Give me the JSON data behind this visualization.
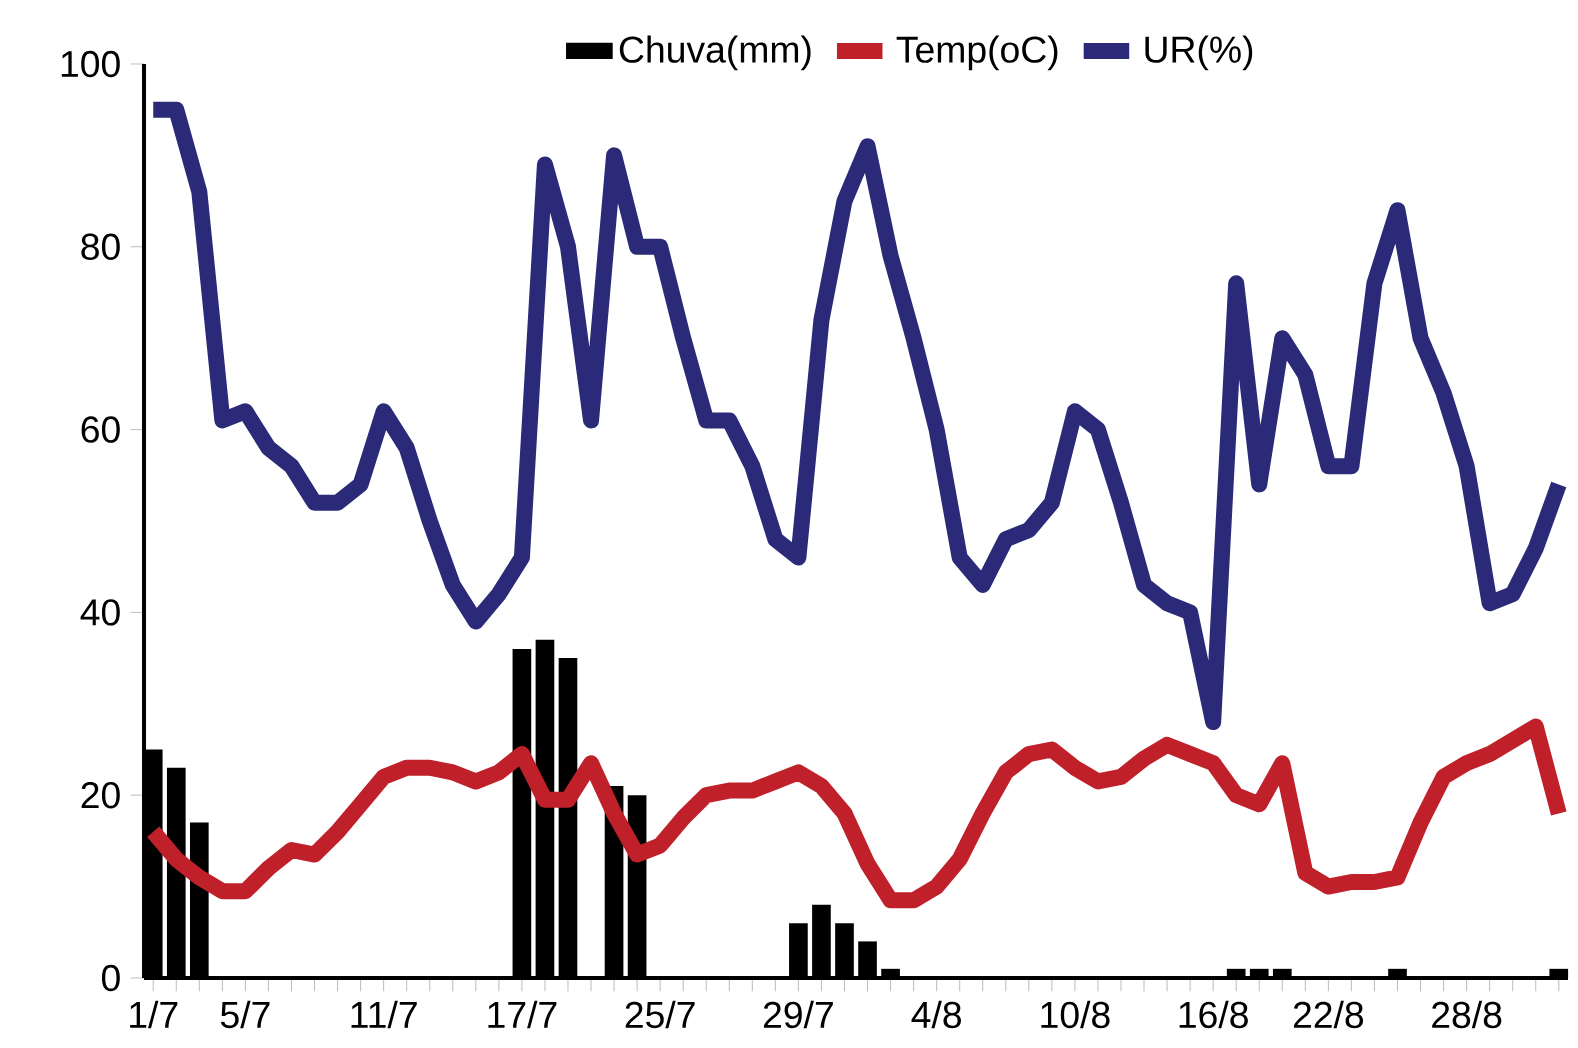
{
  "chart_data": {
    "type": "bar",
    "categories": [
      "1/7",
      null,
      null,
      null,
      "5/7",
      null,
      null,
      null,
      null,
      null,
      "11/7",
      null,
      null,
      null,
      null,
      null,
      "17/7",
      null,
      null,
      null,
      null,
      null,
      "25/7",
      null,
      null,
      null,
      null,
      null,
      "29/7",
      null,
      null,
      null,
      null,
      null,
      "4/8",
      null,
      null,
      null,
      null,
      null,
      "10/8",
      null,
      null,
      null,
      null,
      null,
      "16/8",
      null,
      null,
      null,
      null,
      "22/8",
      null,
      null,
      null,
      null,
      null,
      "28/8",
      null,
      null,
      null,
      null
    ],
    "series": [
      {
        "name": "Chuva(mm)",
        "color": "#000000",
        "values": [
          25,
          23,
          17,
          0,
          0,
          0,
          0,
          0,
          0,
          0,
          0,
          0,
          0,
          0,
          0,
          0,
          36,
          37,
          35,
          0,
          21,
          20,
          0,
          0,
          0,
          0,
          0,
          0,
          6,
          8,
          6,
          4,
          1,
          0,
          0,
          0,
          0,
          0,
          0,
          0,
          0,
          0,
          0,
          0,
          0,
          0,
          0,
          1,
          1,
          1,
          0,
          0,
          0,
          0,
          1,
          0,
          0,
          0,
          0,
          0,
          0,
          1
        ]
      },
      {
        "name": "Temp(oC)",
        "type": "line",
        "color": "#c0202a",
        "values": [
          16,
          13,
          11,
          9.5,
          9.5,
          12,
          14,
          13.5,
          16,
          19,
          22,
          23,
          23,
          22.5,
          21.5,
          22.5,
          24.5,
          19.5,
          19.5,
          23.5,
          18,
          13.5,
          14.5,
          17.5,
          20,
          20.5,
          20.5,
          21.5,
          22.5,
          21,
          18,
          12.5,
          8.5,
          8.5,
          10,
          13,
          18,
          22.5,
          24.5,
          25,
          23,
          21.5,
          22,
          24,
          25.5,
          24.5,
          23.5,
          20,
          19,
          23.5,
          11.5,
          10,
          10.5,
          10.5,
          11,
          17,
          22,
          23.5,
          24.5,
          26,
          27.5,
          18
        ]
      },
      {
        "name": "UR(%)",
        "type": "line",
        "color": "#2a2a78",
        "values": [
          95,
          95,
          86,
          61,
          62,
          58,
          56,
          52,
          52,
          54,
          62,
          58,
          50,
          43,
          39,
          42,
          46,
          89,
          80,
          61,
          90,
          80,
          80,
          70,
          61,
          61,
          56,
          48,
          46,
          72,
          85,
          91,
          79,
          70,
          60,
          46,
          43,
          48,
          49,
          52,
          62,
          60,
          52,
          43,
          41,
          40,
          28,
          76,
          54,
          70,
          66,
          56,
          56,
          76,
          84,
          70,
          64,
          56,
          41,
          42,
          47,
          54
        ]
      }
    ],
    "ylim": [
      0,
      100
    ],
    "yticks": [
      0,
      20,
      40,
      60,
      80,
      100
    ],
    "legend": "top",
    "grid": false,
    "marker": "none",
    "line_style": "solid"
  }
}
